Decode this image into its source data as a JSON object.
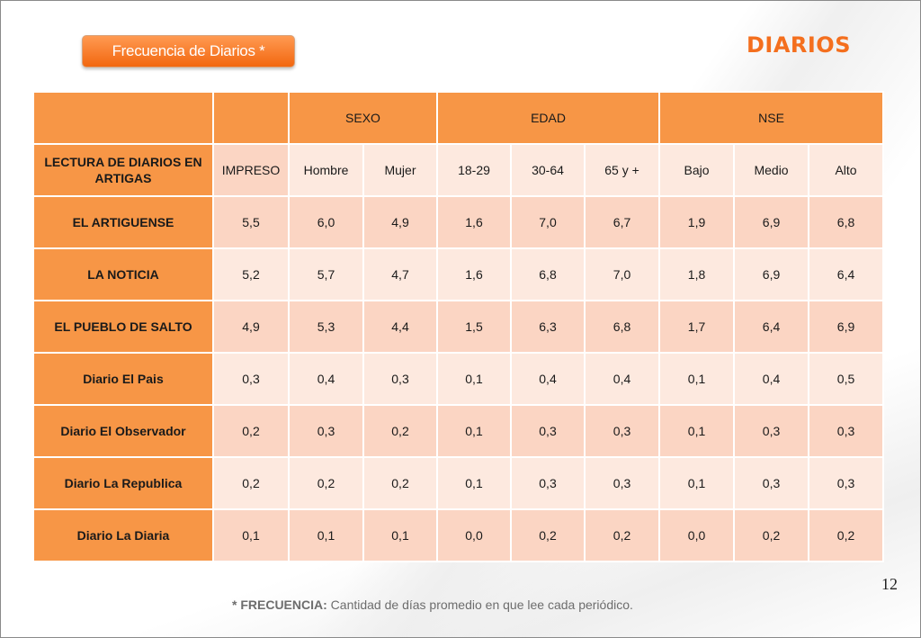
{
  "header": {
    "title_button": "Frecuencia de Diarios  *",
    "brand": "DIARIOS"
  },
  "table": {
    "groups": {
      "sexo": "SEXO",
      "edad": "EDAD",
      "nse": "NSE"
    },
    "row_header": "LECTURA DE DIARIOS EN ARTIGAS",
    "columns": [
      "IMPRESO",
      "Hombre",
      "Mujer",
      "18-29",
      "30-64",
      "65 y +",
      "Bajo",
      "Medio",
      "Alto"
    ],
    "rows": [
      {
        "label": "EL ARTIGUENSE",
        "values": [
          "5,5",
          "6,0",
          "4,9",
          "1,6",
          "7,0",
          "6,7",
          "1,9",
          "6,9",
          "6,8"
        ]
      },
      {
        "label": "LA NOTICIA",
        "values": [
          "5,2",
          "5,7",
          "4,7",
          "1,6",
          "6,8",
          "7,0",
          "1,8",
          "6,9",
          "6,4"
        ]
      },
      {
        "label": "EL PUEBLO DE SALTO",
        "values": [
          "4,9",
          "5,3",
          "4,4",
          "1,5",
          "6,3",
          "6,8",
          "1,7",
          "6,4",
          "6,9"
        ]
      },
      {
        "label": "Diario El Pais",
        "values": [
          "0,3",
          "0,4",
          "0,3",
          "0,1",
          "0,4",
          "0,4",
          "0,1",
          "0,4",
          "0,5"
        ]
      },
      {
        "label": "Diario El Observador",
        "values": [
          "0,2",
          "0,3",
          "0,2",
          "0,1",
          "0,3",
          "0,3",
          "0,1",
          "0,3",
          "0,3"
        ]
      },
      {
        "label": "Diario La Republica",
        "values": [
          "0,2",
          "0,2",
          "0,2",
          "0,1",
          "0,3",
          "0,3",
          "0,1",
          "0,3",
          "0,3"
        ]
      },
      {
        "label": "Diario La Diaria",
        "values": [
          "0,1",
          "0,1",
          "0,1",
          "0,0",
          "0,2",
          "0,2",
          "0,0",
          "0,2",
          "0,2"
        ]
      }
    ]
  },
  "footer": {
    "page_number": "12",
    "footnote_bold": "* FRECUENCIA:",
    "footnote_text": " Cantidad  de días promedio en que lee cada periódico."
  },
  "colors": {
    "accent": "#f79646",
    "brand": "#f46f1e",
    "cell_light": "#fde9df",
    "cell_mid": "#fbd5c3"
  }
}
